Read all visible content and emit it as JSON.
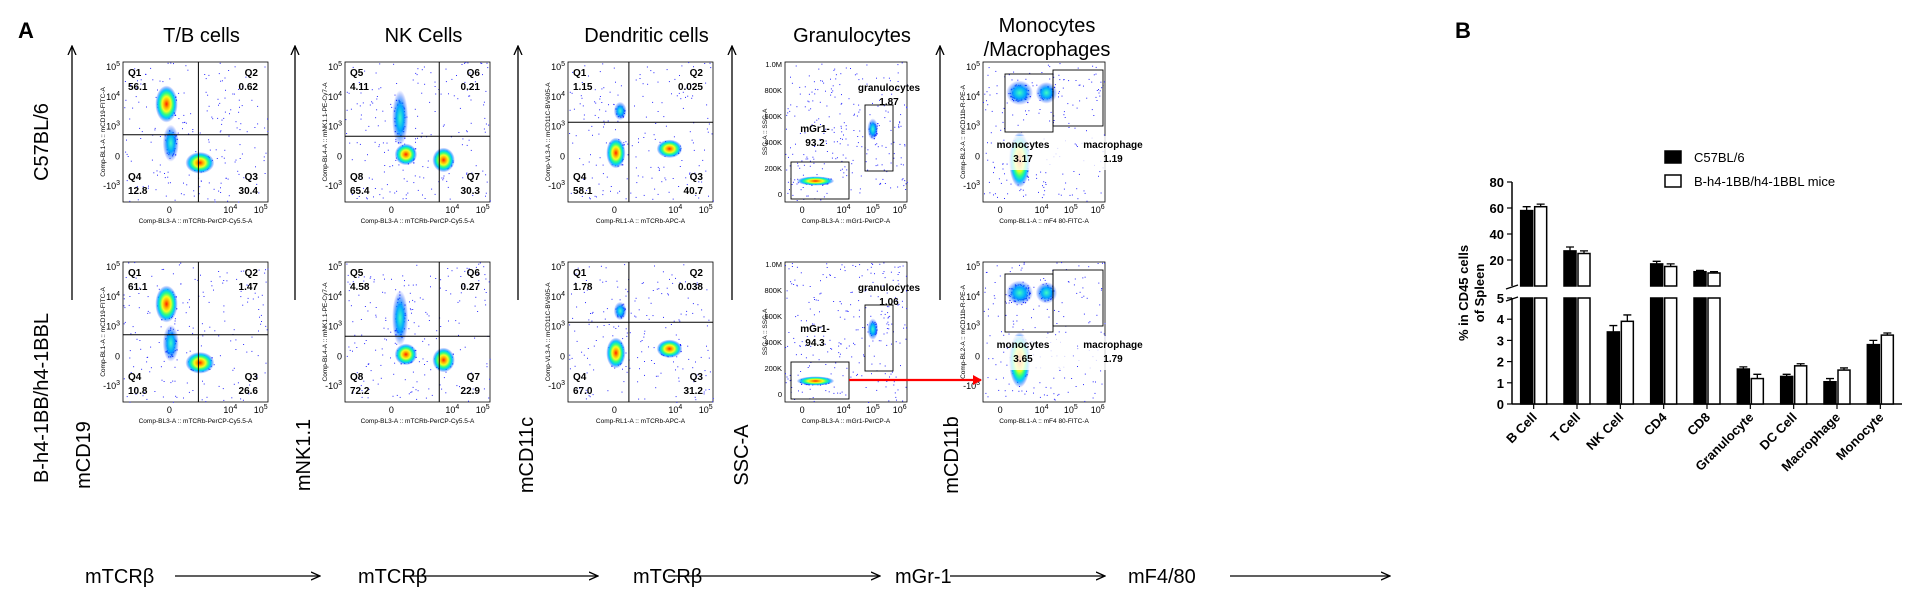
{
  "panel_a": {
    "label": "A",
    "row_labels": [
      "C57BL/6",
      "B-h4-1BB/h4-1BBL"
    ],
    "columns": [
      {
        "title": "T/B cells",
        "y_marker": "mCD19",
        "x_marker": "mTCRβ",
        "x_param": "Comp-BL3-A :: mTCRb-PerCP-Cy5.5-A",
        "y_param": "Comp-BL1-A :: mCD19-FITC-A",
        "gate": "quadrant",
        "quadrants": [
          "Q1",
          "Q2",
          "Q3",
          "Q4"
        ],
        "values": [
          [
            "56.1",
            "0.62",
            "30.4",
            "12.8"
          ],
          [
            "61.1",
            "1.47",
            "26.6",
            "10.8"
          ]
        ]
      },
      {
        "title": "NK Cells",
        "y_marker": "mNK1.1",
        "x_marker": "mTCRβ",
        "x_param": "Comp-BL3-A :: mTCRb-PerCP-Cy5.5-A",
        "y_param": "Comp-BL4-A :: mNK1.1-PE-Cy7-A",
        "gate": "quadrant",
        "quadrants": [
          "Q5",
          "Q6",
          "Q7",
          "Q8"
        ],
        "values": [
          [
            "4.11",
            "0.21",
            "30.3",
            "65.4"
          ],
          [
            "4.58",
            "0.27",
            "22.9",
            "72.2"
          ]
        ]
      },
      {
        "title": "Dendritic cells",
        "y_marker": "mCD11c",
        "x_marker": "mTCRβ",
        "x_param": "Comp-RL1-A :: mTCRb-APC-A",
        "y_param": "Comp-VL3-A :: mCD11C-BV605-A",
        "gate": "quadrant",
        "quadrants": [
          "Q1",
          "Q2",
          "Q3",
          "Q4"
        ],
        "values": [
          [
            "1.15",
            "0.025",
            "40.7",
            "58.1"
          ],
          [
            "1.78",
            "0.038",
            "31.2",
            "67.0"
          ]
        ]
      },
      {
        "title": "Granulocytes",
        "y_marker": "SSC-A",
        "x_marker": "mGr-1",
        "x_param": "Comp-BL3-A :: mGr1-PerCP-A",
        "y_param": "SSC-A :: SSC-A",
        "gate": "gr1",
        "gate_names": [
          "mGr1-",
          "granulocytes"
        ],
        "values": [
          [
            "93.2",
            "1.87"
          ],
          [
            "94.3",
            "1.06"
          ]
        ]
      },
      {
        "title": "Monocytes /Macrophages",
        "title_lines": [
          "Monocytes",
          "/Macrophages"
        ],
        "y_marker": "mCD11b",
        "x_marker": "mF4/80",
        "x_param": "Comp-BL1-A :: mF4 80-FITC-A",
        "y_param": "Comp-BL2-A :: mCD11b-R-PE-A",
        "gate": "mono",
        "gate_names": [
          "monocytes",
          "macrophage"
        ],
        "values": [
          [
            "3.17",
            "1.19"
          ],
          [
            "3.65",
            "1.79"
          ]
        ]
      }
    ],
    "log_ticks_y": [
      "10^5",
      "10^4",
      "10^3",
      "0",
      "-10^3"
    ],
    "log_ticks_x": [
      "0",
      "10^4",
      "10^5"
    ],
    "log_ticks_x_wide": [
      "0",
      "10^4",
      "10^5",
      "10^6"
    ],
    "linear_ticks_y": [
      "1.0M",
      "800K",
      "600K",
      "400K",
      "200K",
      "0"
    ],
    "colors": {
      "density_low": "#1a1aff",
      "density_mid": "#00e5ff",
      "density_high": "#ff2000",
      "arrow": "#ff0000"
    }
  },
  "panel_b": {
    "label": "B",
    "chart_data": {
      "type": "bar",
      "categories": [
        "B Cell",
        "T Cell",
        "NK Cell",
        "CD4",
        "CD8",
        "Granulocyte",
        "DC Cell",
        "Macrophage",
        "Monocyte"
      ],
      "ylabel": "% in CD45 cells of Spleen",
      "ylabel_lines": [
        "% in CD45 cells",
        "of Spleen"
      ],
      "axis_break": true,
      "y_upper_ticks": [
        20,
        40,
        60,
        80
      ],
      "y_lower_ticks": [
        0,
        1,
        2,
        3,
        4,
        5
      ],
      "series": [
        {
          "name": "C57BL/6",
          "fill": "#000000",
          "values": [
            58,
            27,
            3.4,
            17,
            11,
            1.65,
            1.3,
            1.05,
            2.8
          ],
          "errors": [
            3,
            3,
            0.3,
            2,
            1,
            0.1,
            0.1,
            0.15,
            0.2
          ]
        },
        {
          "name": "B-h4-1BB/h4-1BBL mice",
          "fill": "#ffffff",
          "values": [
            61,
            25,
            3.9,
            15,
            10,
            1.2,
            1.8,
            1.6,
            3.25
          ],
          "errors": [
            2,
            2,
            0.3,
            2,
            1,
            0.2,
            0.1,
            0.1,
            0.1
          ]
        }
      ]
    }
  }
}
